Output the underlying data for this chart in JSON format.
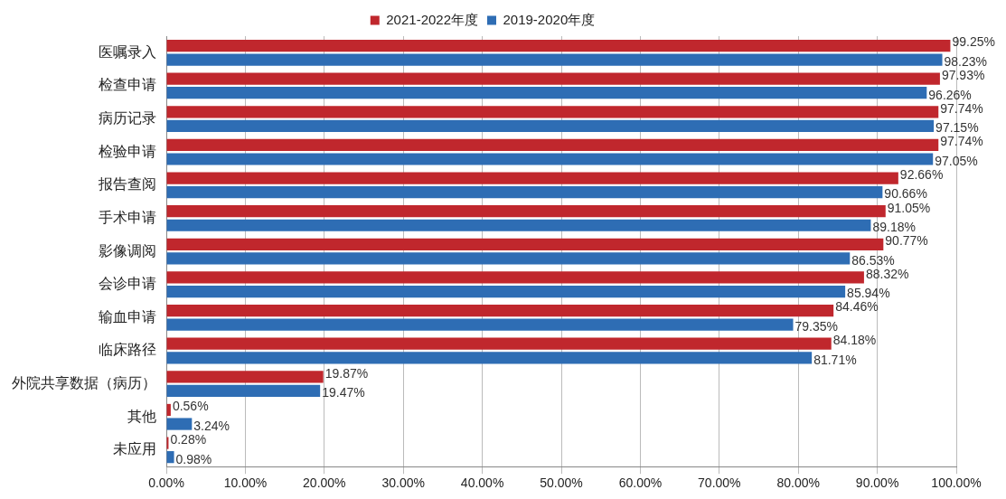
{
  "chart_data": {
    "type": "bar",
    "orientation": "horizontal",
    "legend": "top",
    "grid": "x",
    "categories": [
      "医嘱录入",
      "检查申请",
      "病历记录",
      "检验申请",
      "报告查阅",
      "手术申请",
      "影像调阅",
      "会诊申请",
      "输血申请",
      "临床路径",
      "外院共享数据（病历）",
      "其他",
      "未应用"
    ],
    "series": [
      {
        "name": "2021-2022年度",
        "color": "#c0272d",
        "values": [
          99.25,
          97.93,
          97.74,
          97.74,
          92.66,
          91.05,
          90.77,
          88.32,
          84.46,
          84.18,
          19.87,
          0.56,
          0.28
        ],
        "value_labels": [
          "99.25%",
          "97.93%",
          "97.74%",
          "97.74%",
          "92.66%",
          "91.05%",
          "90.77%",
          "88.32%",
          "84.46%",
          "84.18%",
          "19.87%",
          "0.56%",
          "0.28%"
        ]
      },
      {
        "name": "2019-2020年度",
        "color": "#2e6db4",
        "values": [
          98.23,
          96.26,
          97.15,
          97.05,
          90.66,
          89.18,
          86.53,
          85.94,
          79.35,
          81.71,
          19.47,
          3.24,
          0.98
        ],
        "value_labels": [
          "98.23%",
          "96.26%",
          "97.15%",
          "97.05%",
          "90.66%",
          "89.18%",
          "86.53%",
          "85.94%",
          "79.35%",
          "81.71%",
          "19.47%",
          "3.24%",
          "0.98%"
        ]
      }
    ],
    "xlim": [
      0,
      100
    ],
    "xticks": [
      {
        "value": 0,
        "label": "0.00%"
      },
      {
        "value": 10,
        "label": "10.00%"
      },
      {
        "value": 20,
        "label": "20.00%"
      },
      {
        "value": 30,
        "label": "30.00%"
      },
      {
        "value": 40,
        "label": "40.00%"
      },
      {
        "value": 50,
        "label": "50.00%"
      },
      {
        "value": 60,
        "label": "60.00%"
      },
      {
        "value": 70,
        "label": "70.00%"
      },
      {
        "value": 80,
        "label": "80.00%"
      },
      {
        "value": 90,
        "label": "90.00%"
      },
      {
        "value": 100,
        "label": "100.00%"
      }
    ]
  }
}
